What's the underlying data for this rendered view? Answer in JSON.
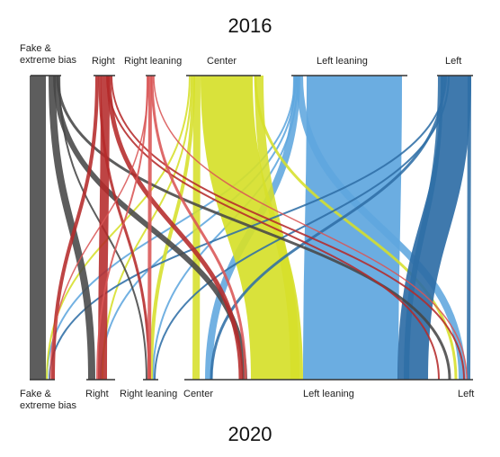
{
  "title_top": "2016",
  "title_bottom": "2020",
  "categories_2016": [
    {
      "key": "fake",
      "label": "Fake &\nextreme bias",
      "color": "#474747"
    },
    {
      "key": "right",
      "label": "Right",
      "color": "#b52a2a"
    },
    {
      "key": "right_leaning",
      "label": "Right leaning",
      "color": "#d95555"
    },
    {
      "key": "center",
      "label": "Center",
      "color": "#d6df2a"
    },
    {
      "key": "left_leaning",
      "label": "Left leaning",
      "color": "#5ea6de"
    },
    {
      "key": "left",
      "label": "Left",
      "color": "#2f6ea6"
    }
  ],
  "categories_2020": [
    {
      "key": "fake",
      "label": "Fake &\nextreme bias"
    },
    {
      "key": "right",
      "label": "Right"
    },
    {
      "key": "right_leaning",
      "label": "Right leaning"
    },
    {
      "key": "center",
      "label": "Center"
    },
    {
      "key": "left_leaning",
      "label": "Left leaning"
    },
    {
      "key": "left",
      "label": "Left"
    }
  ]
}
